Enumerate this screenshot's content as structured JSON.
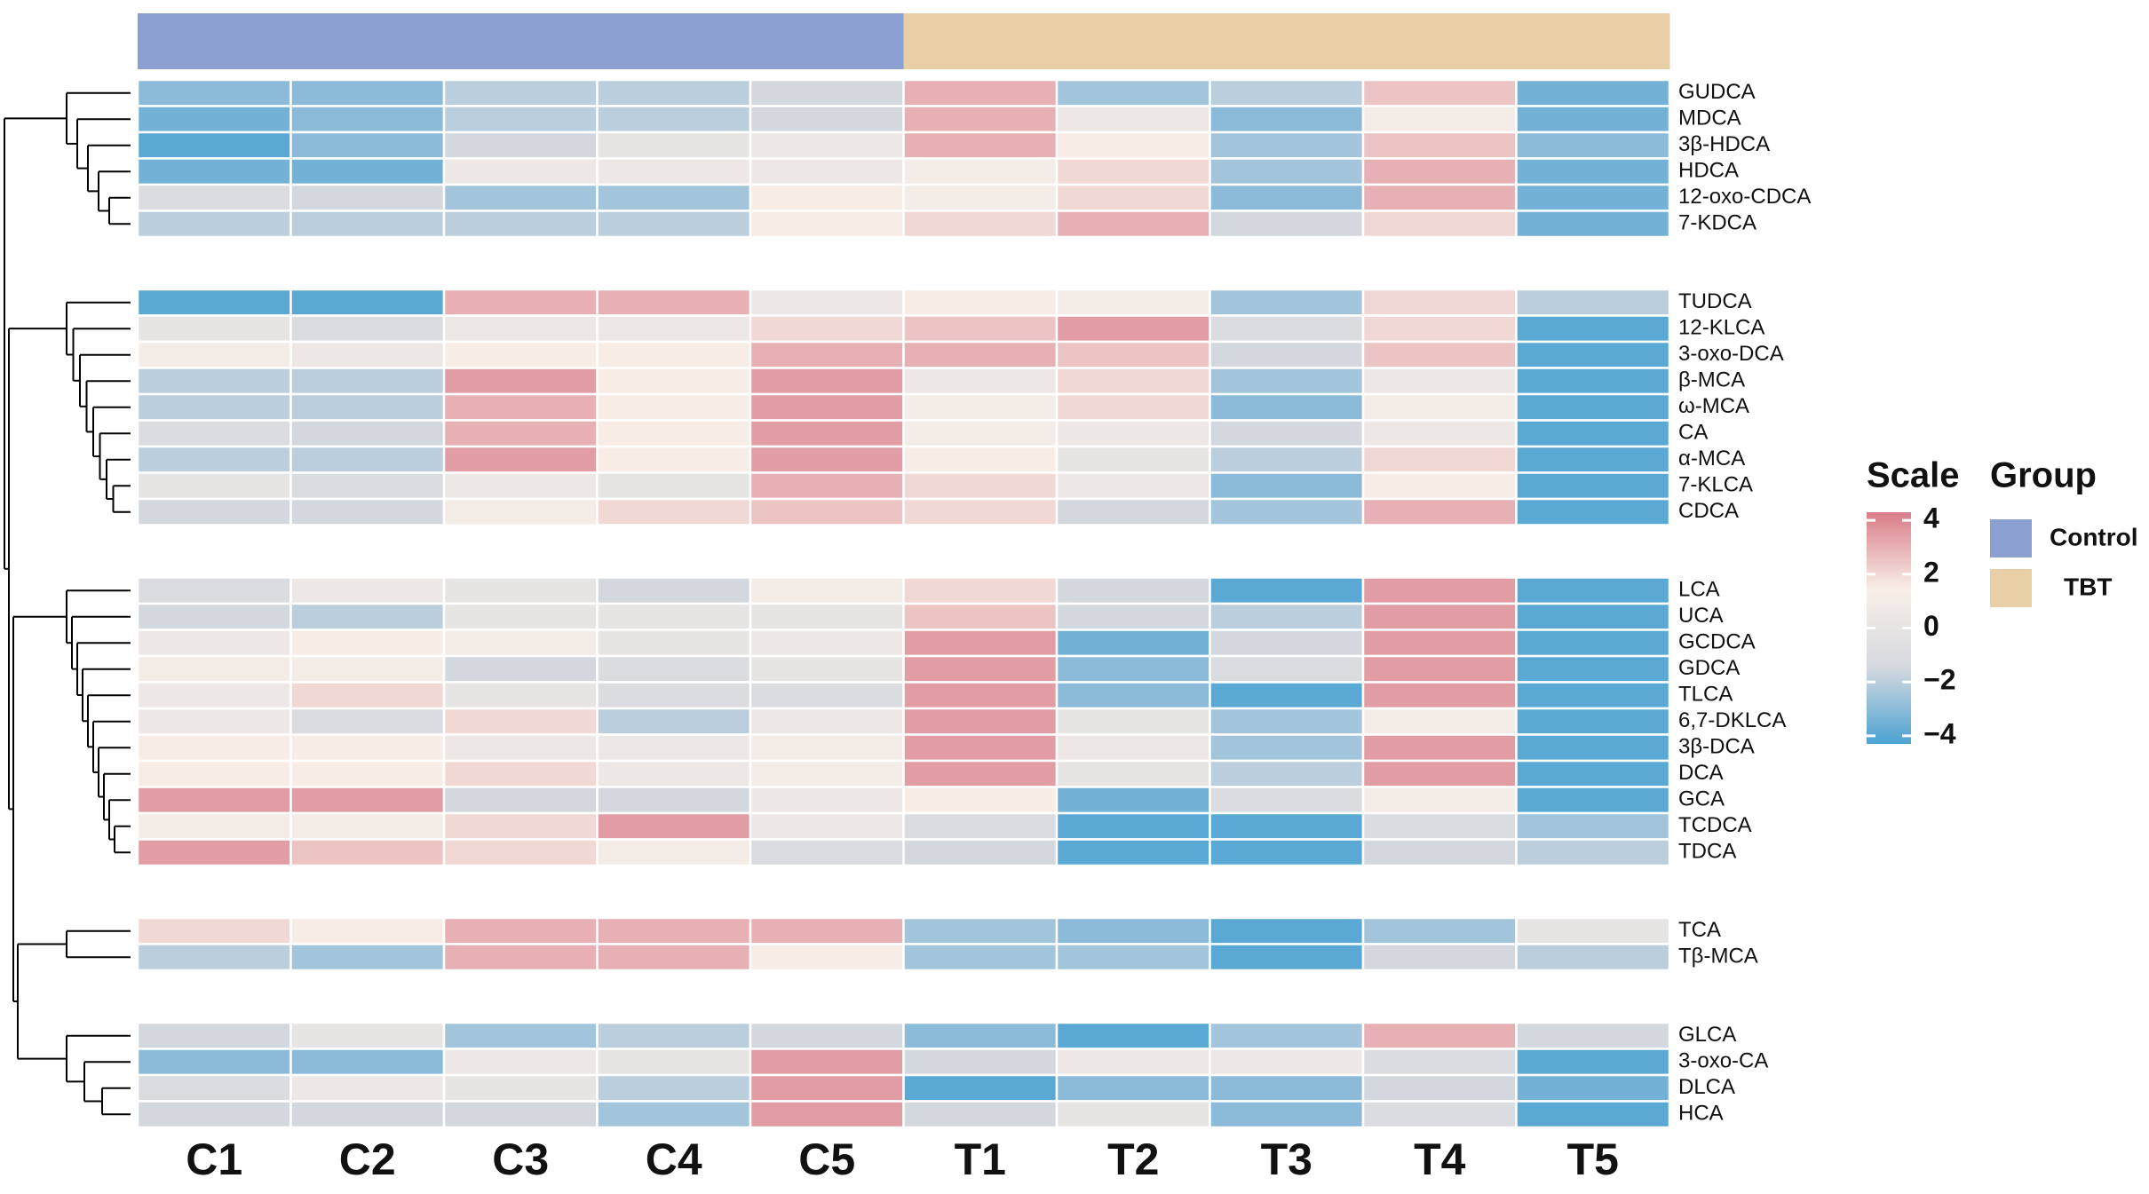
{
  "chart_data": {
    "type": "heatmap",
    "columns": [
      "C1",
      "C2",
      "C3",
      "C4",
      "C5",
      "T1",
      "T2",
      "T3",
      "T4",
      "T5"
    ],
    "rows": [
      "GUDCA",
      "MDCA",
      "3β-HDCA",
      "HDCA",
      "12-oxo-CDCA",
      "7-KDCA",
      "TUDCA",
      "12-KLCA",
      "3-oxo-DCA",
      "β-MCA",
      "ω-MCA",
      "CA",
      "α-MCA",
      "7-KLCA",
      "CDCA",
      "LCA",
      "UCA",
      "GCDCA",
      "GDCA",
      "TLCA",
      "6,7-DKLCA",
      "3β-DCA",
      "DCA",
      "GCA",
      "TCDCA",
      "TDCA",
      "TCA",
      "Tβ-MCA",
      "GLCA",
      "3-oxo-CA",
      "DLCA",
      "HCA"
    ],
    "values": [
      [
        -3,
        -3,
        -2,
        -2,
        -1.5,
        3,
        -2.5,
        -2,
        2.5,
        -3.5
      ],
      [
        -3.5,
        -3,
        -2,
        -2,
        -1.5,
        3,
        0.5,
        -3,
        1,
        -3.5
      ],
      [
        -4,
        -3,
        -1.5,
        0,
        0.5,
        3,
        1.5,
        -2.5,
        2.5,
        -3
      ],
      [
        -3.5,
        -3.5,
        0.5,
        0.5,
        0.5,
        1,
        2,
        -2.5,
        3,
        -3.5
      ],
      [
        -1,
        -1.5,
        -2.5,
        -2.5,
        1.5,
        1,
        2,
        -3,
        3,
        -3.5
      ],
      [
        -2,
        -2,
        -2,
        -2,
        1.5,
        2,
        3,
        -1.5,
        2,
        -3.5
      ],
      [
        -4,
        -4,
        3,
        3,
        0.5,
        1.5,
        1,
        -2.5,
        2,
        -2
      ],
      [
        0,
        -1,
        0.5,
        0.5,
        2,
        2.5,
        3.5,
        -1,
        2,
        -4
      ],
      [
        1,
        0.5,
        1.5,
        1.5,
        3,
        3,
        2.5,
        -1.5,
        2.5,
        -4
      ],
      [
        -2,
        -2,
        3.5,
        1.5,
        3.5,
        0.5,
        2,
        -2.5,
        0.5,
        -4
      ],
      [
        -2,
        -2,
        3,
        1.5,
        3.5,
        1,
        2,
        -3,
        1,
        -4
      ],
      [
        -1,
        -1.5,
        3,
        1.5,
        3.5,
        1,
        0.5,
        -1.5,
        0.5,
        -4
      ],
      [
        -2,
        -2,
        3.5,
        1.5,
        3.5,
        1.5,
        0,
        -2,
        2,
        -4
      ],
      [
        0,
        -1,
        0.5,
        0,
        3,
        2,
        0.5,
        -3,
        1.5,
        -4
      ],
      [
        -1.5,
        -1.5,
        1,
        2,
        2.5,
        2,
        -1.5,
        -2.5,
        3,
        -4
      ],
      [
        -1,
        0.5,
        0,
        -1.5,
        1,
        2,
        -1.5,
        -4,
        3.5,
        -4
      ],
      [
        -1.5,
        -2,
        0,
        0,
        0,
        2.5,
        -1.5,
        -2,
        3.5,
        -4
      ],
      [
        0.5,
        1.5,
        1,
        0,
        0.5,
        3.5,
        -3.5,
        -1.5,
        3.5,
        -4
      ],
      [
        1,
        1,
        -1.5,
        -1,
        0,
        3.5,
        -3,
        -1,
        3.5,
        -4
      ],
      [
        0.5,
        2,
        0,
        -1,
        -1,
        3.5,
        -3,
        -4,
        3.5,
        -4
      ],
      [
        0.5,
        -1,
        2,
        -2,
        0.5,
        3.5,
        0,
        -2.5,
        1,
        -4
      ],
      [
        1.5,
        1.5,
        0.5,
        0.5,
        1,
        3.5,
        0.5,
        -2.5,
        3.5,
        -4
      ],
      [
        1.5,
        1.5,
        2,
        0.5,
        1,
        3.5,
        0,
        -2,
        3.5,
        -4
      ],
      [
        3.5,
        3.5,
        -1.5,
        -1.5,
        0.5,
        1.5,
        -3.5,
        -1,
        1,
        -4
      ],
      [
        1,
        1,
        2,
        3.5,
        0.5,
        -1,
        -4,
        -4,
        -1,
        -2.5
      ],
      [
        3.5,
        2.5,
        2,
        1,
        -1,
        -1.5,
        -4,
        -4,
        -1.5,
        -2
      ],
      [
        2,
        1.5,
        3,
        3,
        3,
        -2.5,
        -3,
        -4,
        -2.5,
        0
      ],
      [
        -2,
        -2.5,
        3,
        3,
        1.5,
        -2.5,
        -2.5,
        -4,
        -1.5,
        -2
      ],
      [
        -1.5,
        0,
        -2.5,
        -2,
        -1.5,
        -3,
        -4,
        -2.5,
        3,
        -1.5
      ],
      [
        -3,
        -3,
        0.5,
        0,
        3.5,
        -1.5,
        0.5,
        0.5,
        -1,
        -4
      ],
      [
        -1,
        0.5,
        0,
        -2,
        3.5,
        -4,
        -3,
        -3,
        -1.5,
        -3.5
      ],
      [
        -1.5,
        -1.5,
        -1.5,
        -2.5,
        3.5,
        -1.5,
        0,
        -3,
        -1,
        -4
      ]
    ],
    "colorscale": [
      "#4ca3d3",
      "#d6d9df",
      "#f8efe8",
      "#d97c88"
    ],
    "zlim": [
      -4.3,
      4.3
    ],
    "scale_title": "Scale",
    "zticks": [
      4,
      2,
      0,
      {
        "value": -2,
        "label": "−2"
      },
      {
        "value": -4,
        "label": "−4"
      }
    ],
    "group_title": "Group",
    "groups": [
      {
        "name": "Control",
        "color": "#8c9fd1"
      },
      {
        "name": "TBT",
        "color": "#e8cfa6"
      }
    ],
    "column_groups": [
      0,
      0,
      0,
      0,
      0,
      1,
      1,
      1,
      1,
      1
    ]
  }
}
